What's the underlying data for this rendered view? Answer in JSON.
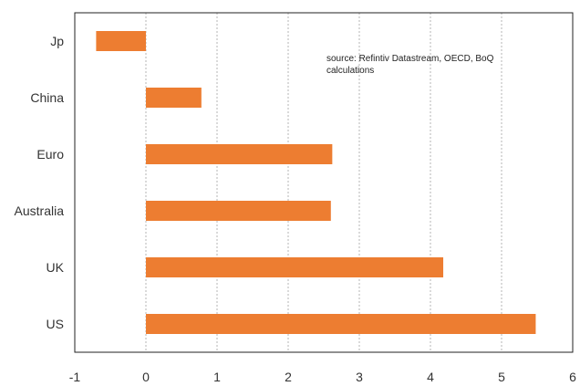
{
  "chart_data": {
    "type": "bar",
    "orientation": "horizontal",
    "categories": [
      "Jp",
      "China",
      "Euro",
      "Australia",
      "UK",
      "US"
    ],
    "values": [
      -0.7,
      0.78,
      2.62,
      2.6,
      4.18,
      5.48
    ],
    "title": "",
    "xlabel": "",
    "ylabel": "",
    "xlim": [
      -1,
      6
    ],
    "x_ticks": [
      "-1",
      "0",
      "1",
      "2",
      "3",
      "4",
      "5",
      "6"
    ],
    "grid": "vertical-dotted",
    "bar_color": "#ED7D31",
    "annotation_lines": [
      "source:  Refintiv Datastream, OECD, BoQ",
      "calculations"
    ]
  }
}
